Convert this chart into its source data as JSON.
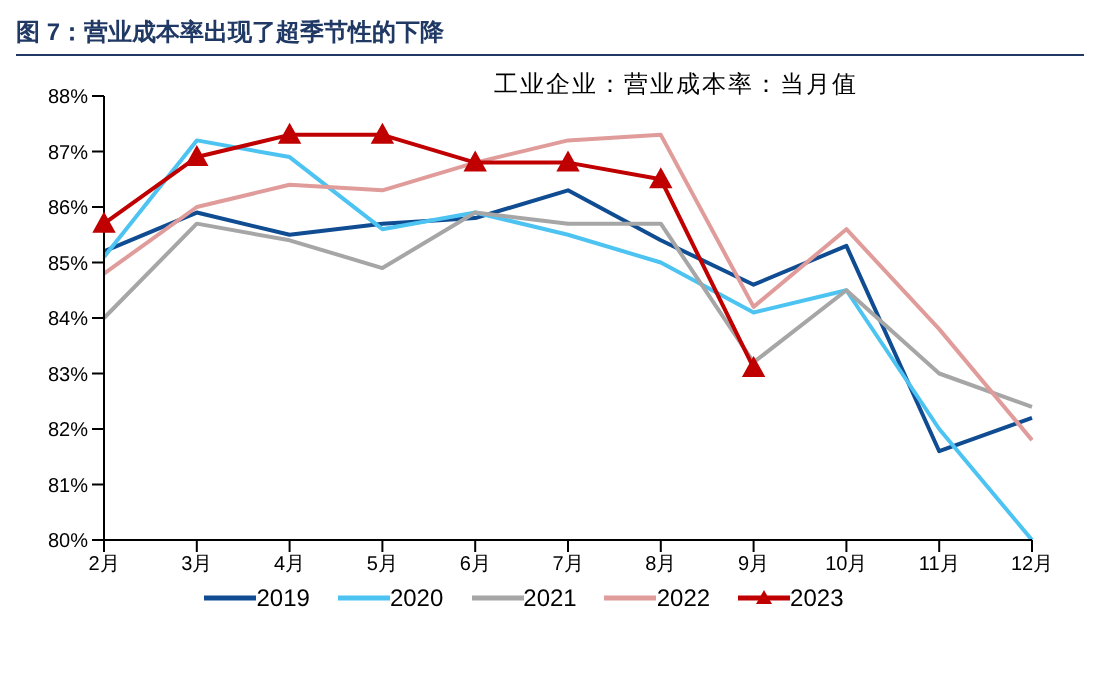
{
  "chart_data": {
    "type": "line",
    "title": "图 7：营业成本率出现了超季节性的下降",
    "subtitle": "工业企业：营业成本率：当月值",
    "categories": [
      "2月",
      "3月",
      "4月",
      "5月",
      "6月",
      "7月",
      "8月",
      "9月",
      "10月",
      "11月",
      "12月"
    ],
    "series": [
      {
        "name": "2019",
        "color": "#0f4c92",
        "marker": "none",
        "values": [
          85.2,
          85.9,
          85.5,
          85.7,
          85.8,
          86.3,
          85.4,
          84.6,
          85.3,
          81.6,
          82.2
        ]
      },
      {
        "name": "2020",
        "color": "#4dc3f2",
        "marker": "none",
        "values": [
          85.1,
          87.2,
          86.9,
          85.6,
          85.9,
          85.5,
          85.0,
          84.1,
          84.5,
          82.0,
          80.0
        ]
      },
      {
        "name": "2021",
        "color": "#a6a6a6",
        "marker": "none",
        "values": [
          84.0,
          85.7,
          85.4,
          84.9,
          85.9,
          85.7,
          85.7,
          83.2,
          84.5,
          83.0,
          82.4
        ]
      },
      {
        "name": "2022",
        "color": "#e09c9a",
        "marker": "none",
        "values": [
          84.8,
          86.0,
          86.4,
          86.3,
          86.8,
          87.2,
          87.3,
          84.2,
          85.6,
          83.8,
          81.8
        ]
      },
      {
        "name": "2023",
        "color": "#c00000",
        "marker": "triangle",
        "values": [
          85.7,
          86.9,
          87.3,
          87.3,
          86.8,
          86.8,
          86.5,
          83.1,
          null,
          null,
          null
        ]
      }
    ],
    "ylim": [
      80,
      88
    ],
    "yticks": [
      {
        "value": 80,
        "label": "80%"
      },
      {
        "value": 81,
        "label": "81%"
      },
      {
        "value": 82,
        "label": "82%"
      },
      {
        "value": 83,
        "label": "83%"
      },
      {
        "value": 84,
        "label": "84%"
      },
      {
        "value": 85,
        "label": "85%"
      },
      {
        "value": 86,
        "label": "86%"
      },
      {
        "value": 87,
        "label": "87%"
      },
      {
        "value": 88,
        "label": "88%"
      }
    ],
    "grid": false,
    "legend": "bottom",
    "line_style": "solid"
  }
}
